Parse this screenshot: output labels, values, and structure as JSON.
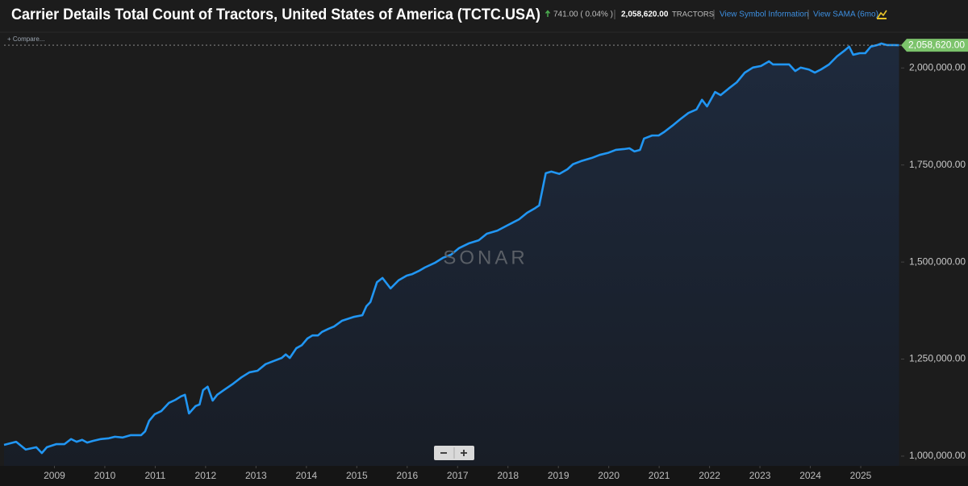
{
  "header": {
    "title": "Carrier Details Total Count of Tractors, United States of America (TCTC.USA)",
    "change": "741.00 ( 0.04% )",
    "value": "2,058,620.00",
    "unit": "TRACTORS",
    "link_info": "View Symbol Information",
    "link_sama": "View SAMA (6mo)",
    "compare": "+ Compare...",
    "watermark": "SONAR"
  },
  "chart_data": {
    "type": "line",
    "x": [
      2008.0,
      2008.24,
      2008.43,
      2008.64,
      2008.75,
      2008.85,
      2009.04,
      2009.2,
      2009.33,
      2009.44,
      2009.55,
      2009.65,
      2009.76,
      2009.92,
      2010.08,
      2010.2,
      2010.35,
      2010.51,
      2010.72,
      2010.8,
      2010.88,
      2010.99,
      2011.12,
      2011.27,
      2011.4,
      2011.51,
      2011.59,
      2011.67,
      2011.8,
      2011.88,
      2011.95,
      2012.04,
      2012.14,
      2012.23,
      2012.36,
      2012.55,
      2012.71,
      2012.87,
      2013.03,
      2013.19,
      2013.35,
      2013.51,
      2013.59,
      2013.67,
      2013.8,
      2013.91,
      2014.02,
      2014.12,
      2014.23,
      2014.31,
      2014.44,
      2014.55,
      2014.71,
      2014.95,
      2015.11,
      2015.19,
      2015.27,
      2015.4,
      2015.51,
      2015.67,
      2015.83,
      2015.99,
      2016.1,
      2016.23,
      2016.35,
      2016.55,
      2016.71,
      2016.87,
      2017.03,
      2017.22,
      2017.42,
      2017.58,
      2017.79,
      2017.98,
      2018.22,
      2018.38,
      2018.54,
      2018.62,
      2018.75,
      2018.86,
      2019.02,
      2019.18,
      2019.29,
      2019.45,
      2019.66,
      2019.82,
      2019.98,
      2020.14,
      2020.3,
      2020.41,
      2020.51,
      2020.62,
      2020.7,
      2020.86,
      2020.99,
      2021.1,
      2021.26,
      2021.42,
      2021.58,
      2021.74,
      2021.85,
      2021.95,
      2022.11,
      2022.22,
      2022.38,
      2022.54,
      2022.7,
      2022.86,
      2023.02,
      2023.18,
      2023.26,
      2023.42,
      2023.58,
      2023.7,
      2023.81,
      2023.97,
      2024.09,
      2024.21,
      2024.37,
      2024.53,
      2024.69,
      2024.77,
      2024.85,
      2024.98,
      2025.09,
      2025.2,
      2025.33,
      2025.41,
      2025.52,
      2025.65,
      2025.76
    ],
    "series": [
      {
        "color": "#2196f3",
        "values": [
          1029000,
          1037000,
          1017000,
          1023000,
          1008000,
          1023000,
          1031000,
          1031000,
          1044000,
          1037000,
          1042000,
          1035000,
          1039000,
          1044000,
          1046000,
          1050000,
          1048000,
          1054000,
          1054000,
          1064000,
          1091000,
          1108000,
          1116000,
          1137000,
          1145000,
          1154000,
          1158000,
          1110000,
          1129000,
          1133000,
          1170000,
          1179000,
          1143000,
          1158000,
          1170000,
          1187000,
          1203000,
          1216000,
          1220000,
          1237000,
          1245000,
          1253000,
          1262000,
          1253000,
          1278000,
          1286000,
          1303000,
          1311000,
          1311000,
          1320000,
          1328000,
          1334000,
          1349000,
          1359000,
          1363000,
          1386000,
          1397000,
          1448000,
          1459000,
          1432000,
          1453000,
          1465000,
          1469000,
          1477000,
          1486000,
          1498000,
          1511000,
          1519000,
          1536000,
          1548000,
          1556000,
          1573000,
          1581000,
          1594000,
          1610000,
          1627000,
          1639000,
          1646000,
          1729000,
          1733000,
          1727000,
          1739000,
          1752000,
          1760000,
          1768000,
          1776000,
          1781000,
          1789000,
          1791000,
          1793000,
          1785000,
          1789000,
          1818000,
          1826000,
          1826000,
          1835000,
          1851000,
          1868000,
          1884000,
          1893000,
          1918000,
          1901000,
          1938000,
          1930000,
          1947000,
          1963000,
          1988000,
          2001000,
          2005000,
          2017000,
          2009000,
          2009000,
          2009000,
          1992000,
          2001000,
          1996000,
          1988000,
          1996000,
          2009000,
          2030000,
          2046000,
          2055000,
          2034000,
          2038000,
          2038000,
          2055000,
          2059000,
          2063000,
          2059000,
          2059000,
          2058620
        ]
      }
    ],
    "xlim": [
      2008,
      2025.8
    ],
    "xticks": [
      2009,
      2010,
      2011,
      2012,
      2013,
      2014,
      2015,
      2016,
      2017,
      2018,
      2019,
      2020,
      2021,
      2022,
      2023,
      2024,
      2025
    ],
    "ylim": [
      975000,
      2092000
    ],
    "yticks": [
      {
        "value": 1000000,
        "label": "1,000,000.00"
      },
      {
        "value": 1250000,
        "label": "1,250,000.00"
      },
      {
        "value": 1500000,
        "label": "1,500,000.00"
      },
      {
        "value": 1750000,
        "label": "1,750,000.00"
      },
      {
        "value": 2000000,
        "label": "2,000,000.00"
      }
    ],
    "grid": false
  }
}
